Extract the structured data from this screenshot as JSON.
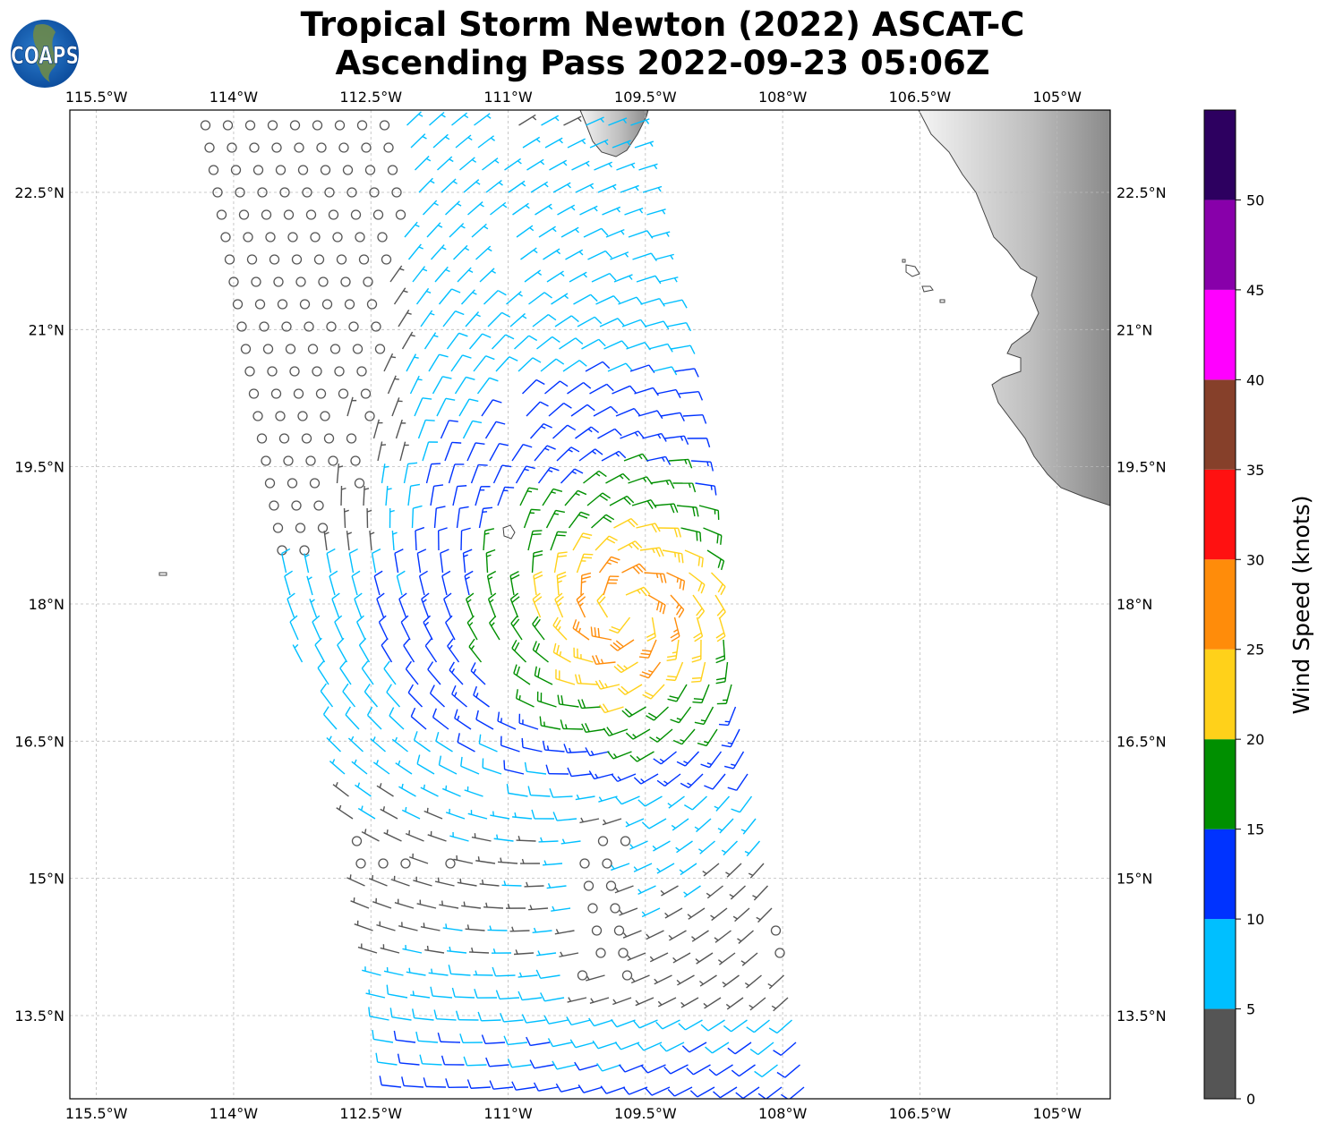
{
  "title": {
    "line1": "Tropical Storm Newton (2022) ASCAT-C",
    "line2": "Ascending Pass 2022-09-23 05:06Z"
  },
  "logo": {
    "text": "COAPS"
  },
  "map": {
    "lon_ticks": [
      {
        "value": -115.5,
        "label": "115.5°W"
      },
      {
        "value": -114,
        "label": "114°W"
      },
      {
        "value": -112.5,
        "label": "112.5°W"
      },
      {
        "value": -111,
        "label": "111°W"
      },
      {
        "value": -109.5,
        "label": "109.5°W"
      },
      {
        "value": -108,
        "label": "108°W"
      },
      {
        "value": -106.5,
        "label": "106.5°W"
      },
      {
        "value": -105,
        "label": "105°W"
      }
    ],
    "lat_ticks": [
      {
        "value": 22.5,
        "label": "22.5°N"
      },
      {
        "value": 21,
        "label": "21°N"
      },
      {
        "value": 19.5,
        "label": "19.5°N"
      },
      {
        "value": 18,
        "label": "18°N"
      },
      {
        "value": 16.5,
        "label": "16.5°N"
      },
      {
        "value": 15,
        "label": "15°N"
      },
      {
        "value": 13.5,
        "label": "13.5°N"
      }
    ],
    "extent": {
      "lon": [
        -115.79,
        -104.42
      ],
      "lat": [
        12.59,
        23.4
      ]
    },
    "storm_center": {
      "lon": -109.7,
      "lat": 17.9
    },
    "max_wind_knots": 28
  },
  "colorbar": {
    "label": "Wind Speed (knots)",
    "ticks": [
      "0",
      "5",
      "10",
      "15",
      "20",
      "25",
      "30",
      "35",
      "40",
      "45",
      "50"
    ],
    "bins": [
      {
        "min": 0,
        "max": 5,
        "color": "#555555"
      },
      {
        "min": 5,
        "max": 10,
        "color": "#00bfff"
      },
      {
        "min": 10,
        "max": 15,
        "color": "#0033ff"
      },
      {
        "min": 15,
        "max": 20,
        "color": "#008f00"
      },
      {
        "min": 20,
        "max": 25,
        "color": "#ffd11a"
      },
      {
        "min": 25,
        "max": 30,
        "color": "#ff8c0a"
      },
      {
        "min": 30,
        "max": 35,
        "color": "#ff1111"
      },
      {
        "min": 35,
        "max": 40,
        "color": "#86402a"
      },
      {
        "min": 40,
        "max": 45,
        "color": "#ff00ff"
      },
      {
        "min": 45,
        "max": 50,
        "color": "#8800aa"
      },
      {
        "min": 50,
        "max": 55,
        "color": "#2d0060"
      }
    ]
  }
}
